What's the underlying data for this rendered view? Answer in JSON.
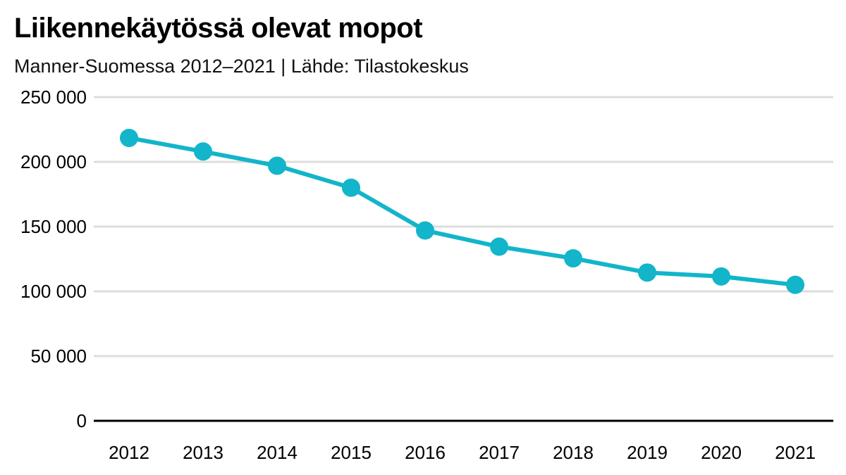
{
  "title": "Liikennekäytössä olevat mopot",
  "subtitle": "Manner-Suomessa 2012–2021 | Lähde: Tilastokeskus",
  "colors": {
    "series": "#12b5c9",
    "grid": "#dddddd",
    "axis": "#000000"
  },
  "chart_data": {
    "type": "line",
    "title": "Liikennekäytössä olevat mopot",
    "subtitle": "Manner-Suomessa 2012–2021 | Lähde: Tilastokeskus",
    "xlabel": "",
    "ylabel": "",
    "categories": [
      "2012",
      "2013",
      "2014",
      "2015",
      "2016",
      "2017",
      "2018",
      "2019",
      "2020",
      "2021"
    ],
    "series": [
      {
        "values": [
          218500,
          208000,
          197000,
          180000,
          147000,
          134500,
          125500,
          114500,
          111500,
          105000
        ]
      }
    ],
    "ylim": [
      0,
      250000
    ],
    "yticks": [
      0,
      50000,
      100000,
      150000,
      200000,
      250000
    ],
    "ytick_labels": [
      "0",
      "50 000",
      "100 000",
      "150 000",
      "200 000",
      "250 000"
    ],
    "grid": true,
    "markers": true
  }
}
